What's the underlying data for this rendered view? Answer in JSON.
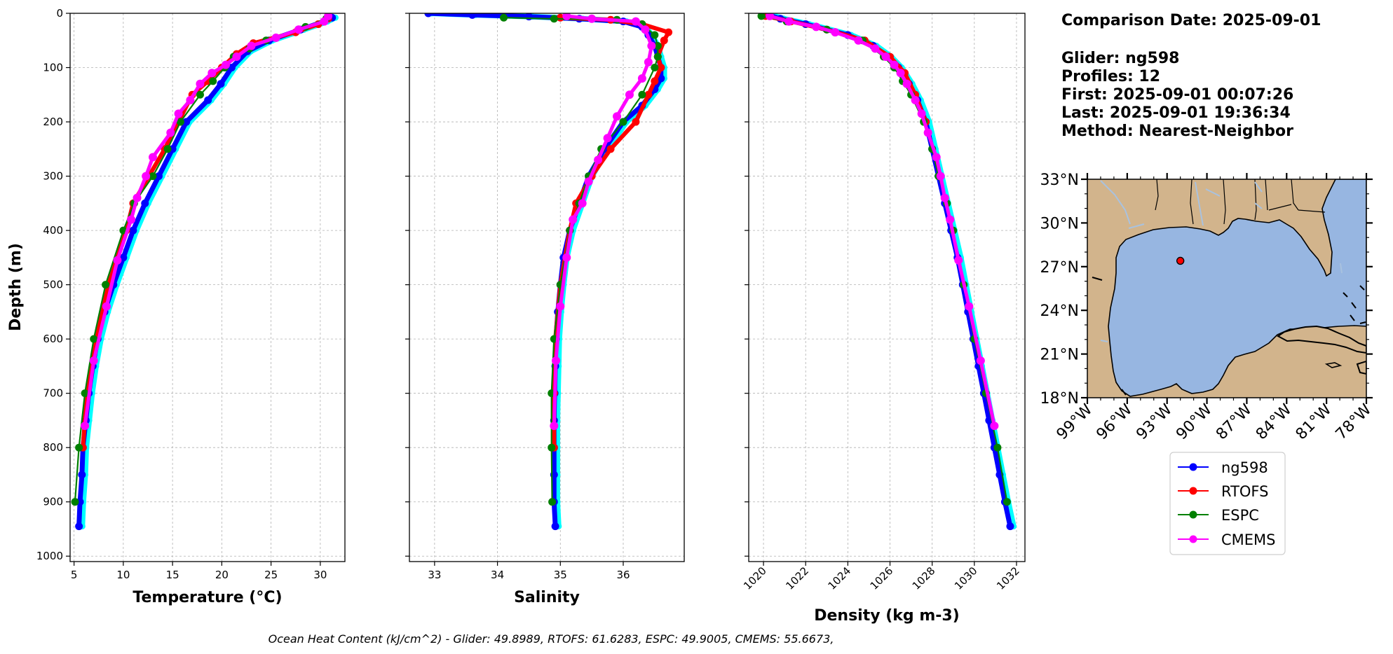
{
  "info": {
    "comparison_date": "Comparison Date: 2025-09-01",
    "glider": "Glider: ng598",
    "profiles": "Profiles: 12",
    "first": "First: 2025-09-01 00:07:26",
    "last": "Last: 2025-09-01 19:36:34",
    "method": "Method: Nearest-Neighbor"
  },
  "ohc_text": "Ocean Heat Content (kJ/cm^2) - Glider: 49.8989,  RTOFS: 61.6283,  ESPC: 49.9005,  CMEMS: 55.6673,",
  "colors": {
    "ng598": "#0000ff",
    "ng598_light": "#00ffff",
    "RTOFS": "#ff0000",
    "ESPC": "#008000",
    "CMEMS": "#ff00ff",
    "land": "#d2b48c",
    "ocean": "#97b6e1",
    "river": "#a9c2df"
  },
  "legend": [
    "ng598",
    "RTOFS",
    "ESPC",
    "CMEMS"
  ],
  "chart_data": [
    {
      "type": "line",
      "name": "temperature",
      "xlabel": "Temperature (°C)",
      "ylabel": "Depth (m)",
      "xlim": [
        4.6,
        32.5
      ],
      "ylim": [
        1010,
        0
      ],
      "xticks": [
        5,
        10,
        15,
        20,
        25,
        30
      ],
      "yticks": [
        0,
        100,
        200,
        300,
        400,
        500,
        600,
        700,
        800,
        900,
        1000
      ],
      "grid": true,
      "series": [
        {
          "name": "ng598",
          "depth": [
            8,
            15,
            30,
            50,
            70,
            100,
            130,
            160,
            200,
            250,
            300,
            350,
            400,
            450,
            500,
            550,
            600,
            650,
            700,
            750,
            800,
            850,
            900,
            945
          ],
          "values": [
            31.2,
            30.4,
            28.0,
            24.8,
            22.6,
            21.0,
            19.9,
            18.6,
            16.4,
            15.0,
            13.6,
            12.2,
            11.0,
            10.0,
            9.0,
            8.1,
            7.4,
            6.9,
            6.5,
            6.2,
            5.9,
            5.8,
            5.6,
            5.5
          ]
        },
        {
          "name": "RTOFS",
          "depth": [
            10,
            20,
            35,
            55,
            75,
            100,
            125,
            150,
            200,
            250,
            300,
            350,
            400,
            500,
            600,
            700,
            800
          ],
          "values": [
            30.8,
            29.8,
            27.5,
            23.2,
            21.5,
            20.0,
            18.6,
            17.0,
            15.6,
            14.2,
            12.6,
            11.0,
            10.3,
            8.5,
            7.2,
            6.3,
            5.9
          ]
        },
        {
          "name": "ESPC",
          "depth": [
            10,
            25,
            50,
            65,
            80,
            100,
            125,
            150,
            200,
            250,
            300,
            350,
            400,
            500,
            600,
            700,
            800,
            900
          ],
          "values": [
            30.6,
            28.5,
            24.5,
            22.8,
            21.2,
            20.3,
            19.1,
            17.8,
            15.8,
            14.5,
            13.0,
            11.1,
            10.0,
            8.2,
            7.0,
            6.1,
            5.5,
            5.1
          ]
        },
        {
          "name": "CMEMS",
          "depth": [
            5,
            15,
            30,
            45,
            60,
            80,
            95,
            110,
            130,
            160,
            185,
            220,
            265,
            300,
            340,
            380,
            455,
            540,
            640,
            760
          ],
          "values": [
            30.8,
            30.4,
            27.8,
            25.5,
            23.0,
            21.5,
            20.4,
            19.0,
            17.8,
            16.8,
            15.6,
            14.8,
            13.0,
            12.3,
            11.4,
            10.8,
            9.4,
            8.3,
            7.0,
            6.1
          ]
        }
      ]
    },
    {
      "type": "line",
      "name": "salinity",
      "xlabel": "Salinity",
      "xlim": [
        32.6,
        36.97
      ],
      "ylim": [
        1010,
        0
      ],
      "xticks": [
        33,
        34,
        35,
        36
      ],
      "grid": true,
      "series": [
        {
          "name": "ng598",
          "depth": [
            0,
            3,
            6,
            10,
            15,
            25,
            40,
            60,
            80,
            100,
            120,
            140,
            170,
            200,
            250,
            300,
            350,
            400,
            450,
            500,
            550,
            600,
            650,
            700,
            750,
            800,
            850,
            900,
            945
          ],
          "values": [
            32.9,
            33.6,
            34.5,
            35.3,
            36.0,
            36.3,
            36.4,
            36.5,
            36.55,
            36.6,
            36.6,
            36.5,
            36.3,
            36.0,
            35.7,
            35.45,
            35.3,
            35.15,
            35.05,
            35.0,
            34.96,
            34.93,
            34.92,
            34.91,
            34.9,
            34.9,
            34.9,
            34.9,
            34.92
          ]
        },
        {
          "name": "RTOFS",
          "depth": [
            8,
            12,
            20,
            35,
            50,
            80,
            100,
            125,
            150,
            200,
            250,
            300,
            350,
            400,
            500,
            600,
            700,
            800
          ],
          "values": [
            35.0,
            35.8,
            36.3,
            36.72,
            36.65,
            36.55,
            36.6,
            36.5,
            36.4,
            36.2,
            35.8,
            35.5,
            35.25,
            35.15,
            35.0,
            34.92,
            34.9,
            34.9
          ]
        },
        {
          "name": "ESPC",
          "depth": [
            8,
            10,
            12,
            20,
            40,
            60,
            80,
            100,
            150,
            200,
            250,
            300,
            350,
            400,
            500,
            600,
            700,
            800,
            900
          ],
          "values": [
            34.1,
            34.9,
            35.9,
            36.3,
            36.5,
            36.55,
            36.55,
            36.5,
            36.3,
            36.0,
            35.65,
            35.45,
            35.3,
            35.15,
            35.0,
            34.9,
            34.86,
            34.86,
            34.87
          ]
        },
        {
          "name": "CMEMS",
          "depth": [
            5,
            10,
            15,
            30,
            60,
            90,
            120,
            150,
            190,
            230,
            270,
            310,
            350,
            380,
            450,
            540,
            640,
            760
          ],
          "values": [
            35.1,
            35.5,
            36.2,
            36.35,
            36.45,
            36.4,
            36.3,
            36.1,
            35.9,
            35.75,
            35.6,
            35.45,
            35.35,
            35.2,
            35.1,
            35.0,
            34.93,
            34.9
          ]
        }
      ]
    },
    {
      "type": "line",
      "name": "density",
      "xlabel": "Density (kg m-3)",
      "xlim": [
        1019.3,
        1032.4
      ],
      "ylim": [
        1010,
        0
      ],
      "xticks": [
        1020,
        1022,
        1024,
        1026,
        1028,
        1030,
        1032
      ],
      "grid": true,
      "series": [
        {
          "name": "ng598",
          "depth": [
            0,
            10,
            20,
            40,
            60,
            80,
            100,
            130,
            160,
            200,
            250,
            300,
            350,
            400,
            450,
            500,
            550,
            600,
            650,
            700,
            750,
            800,
            850,
            900,
            945
          ],
          "values": [
            1020.0,
            1020.8,
            1022.0,
            1024.0,
            1025.2,
            1025.9,
            1026.4,
            1026.9,
            1027.3,
            1027.7,
            1028.0,
            1028.3,
            1028.6,
            1028.9,
            1029.2,
            1029.45,
            1029.7,
            1029.95,
            1030.2,
            1030.45,
            1030.7,
            1030.95,
            1031.2,
            1031.45,
            1031.7
          ]
        },
        {
          "name": "RTOFS",
          "depth": [
            5,
            15,
            30,
            50,
            80,
            110,
            150,
            200
          ],
          "values": [
            1020.1,
            1021.3,
            1023.0,
            1024.8,
            1026.0,
            1026.7,
            1027.2,
            1027.7
          ]
        },
        {
          "name": "ESPC",
          "depth": [
            5,
            15,
            30,
            50,
            80,
            100,
            125,
            150,
            200,
            250,
            300,
            350,
            400,
            500,
            600,
            700,
            800,
            900
          ],
          "values": [
            1019.9,
            1021.1,
            1023.0,
            1024.7,
            1025.7,
            1026.2,
            1026.6,
            1027.0,
            1027.6,
            1028.0,
            1028.3,
            1028.7,
            1029.0,
            1029.5,
            1030.0,
            1030.55,
            1031.1,
            1031.55
          ]
        },
        {
          "name": "CMEMS",
          "depth": [
            5,
            15,
            25,
            35,
            50,
            65,
            80,
            95,
            110,
            130,
            160,
            185,
            220,
            265,
            300,
            340,
            380,
            455,
            540,
            640,
            760
          ],
          "values": [
            1020.3,
            1021.2,
            1022.5,
            1023.4,
            1024.5,
            1025.3,
            1025.8,
            1026.2,
            1026.5,
            1026.8,
            1027.2,
            1027.5,
            1027.8,
            1028.2,
            1028.4,
            1028.6,
            1028.85,
            1029.25,
            1029.75,
            1030.3,
            1030.95
          ]
        }
      ]
    },
    {
      "type": "map",
      "name": "glider-location",
      "lon_range": [
        -99,
        -78
      ],
      "lat_range": [
        18,
        33
      ],
      "xticks": [
        "99°W",
        "96°W",
        "93°W",
        "90°W",
        "87°W",
        "84°W",
        "81°W",
        "78°W"
      ],
      "yticks": [
        "18°N",
        "21°N",
        "24°N",
        "27°N",
        "30°N",
        "33°N"
      ],
      "xtick_values": [
        -99,
        -96,
        -93,
        -90,
        -87,
        -84,
        -81,
        -78
      ],
      "ytick_values": [
        18,
        21,
        24,
        27,
        30,
        33
      ],
      "glider_position": {
        "lon": -92.0,
        "lat": 27.4
      }
    }
  ]
}
